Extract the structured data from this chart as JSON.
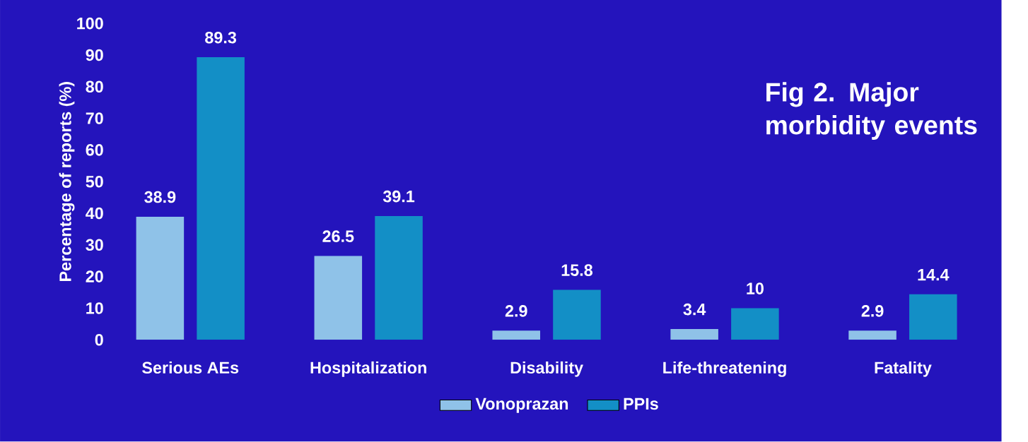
{
  "chart_data": {
    "type": "bar",
    "title": "Fig 2. Major morbidity events",
    "ylabel": "Percentage of reports (%)",
    "categories": [
      "Serious AEs",
      "Hospitalization",
      "Disability",
      "Life-threatening",
      "Fatality"
    ],
    "series": [
      {
        "name": "Vonoprazan",
        "color": "#8fc2e8",
        "values": [
          38.9,
          26.5,
          2.9,
          3.4,
          2.9
        ]
      },
      {
        "name": "PPIs",
        "color": "#138fc6",
        "values": [
          89.3,
          39.1,
          15.8,
          10,
          14.4
        ]
      }
    ],
    "ylim": [
      0,
      100
    ],
    "yticks": [
      0,
      10,
      20,
      30,
      40,
      50,
      60,
      70,
      80,
      90,
      100
    ],
    "data_labels": true,
    "legend": "bottom",
    "grid": false
  }
}
